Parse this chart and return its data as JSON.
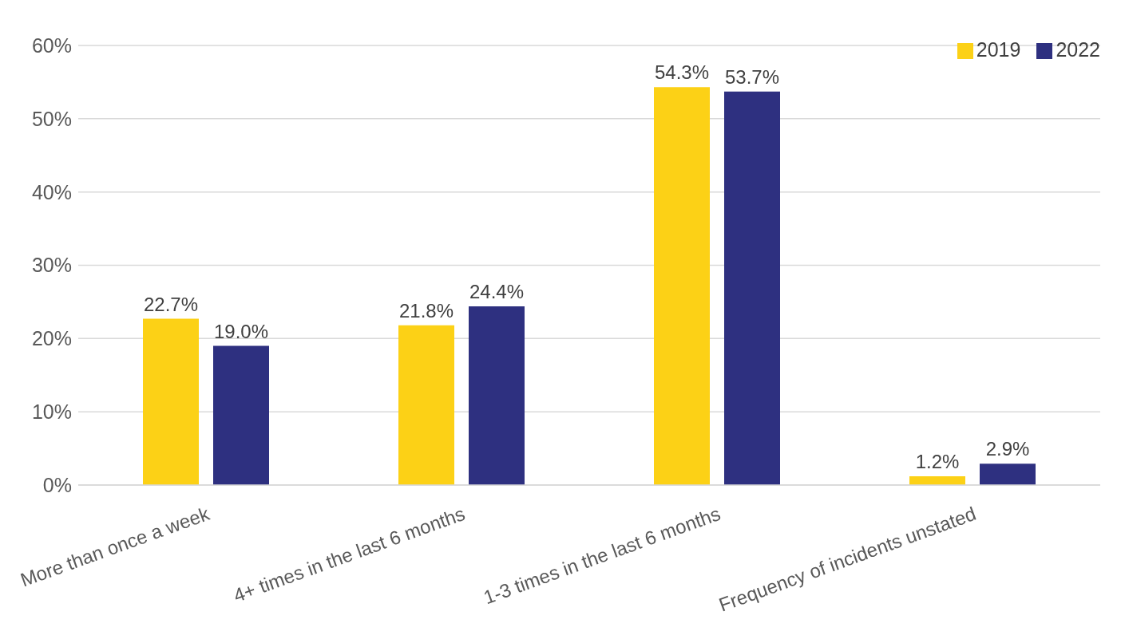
{
  "chart_data": {
    "type": "bar",
    "categories": [
      "More than once a week",
      "4+ times in the last 6 months",
      "1-3 times in the last 6 months",
      "Frequency of incidents unstated"
    ],
    "series": [
      {
        "name": "2019",
        "color": "#fcd116",
        "values": [
          22.7,
          21.8,
          54.3,
          1.2
        ],
        "value_labels": [
          "22.7%",
          "21.8%",
          "54.3%",
          "1.2%"
        ]
      },
      {
        "name": "2022",
        "color": "#2e3080",
        "values": [
          19.0,
          24.4,
          53.7,
          2.9
        ],
        "value_labels": [
          "19.0%",
          "24.4%",
          "53.7%",
          "2.9%"
        ]
      }
    ],
    "ylim": [
      0,
      60
    ],
    "yticks": [
      {
        "value": 0,
        "label": "0%"
      },
      {
        "value": 10,
        "label": "10%"
      },
      {
        "value": 20,
        "label": "20%"
      },
      {
        "value": 30,
        "label": "30%"
      },
      {
        "value": 40,
        "label": "40%"
      },
      {
        "value": 50,
        "label": "50%"
      },
      {
        "value": 60,
        "label": "60%"
      }
    ],
    "grid": "y",
    "legend": "top right"
  }
}
